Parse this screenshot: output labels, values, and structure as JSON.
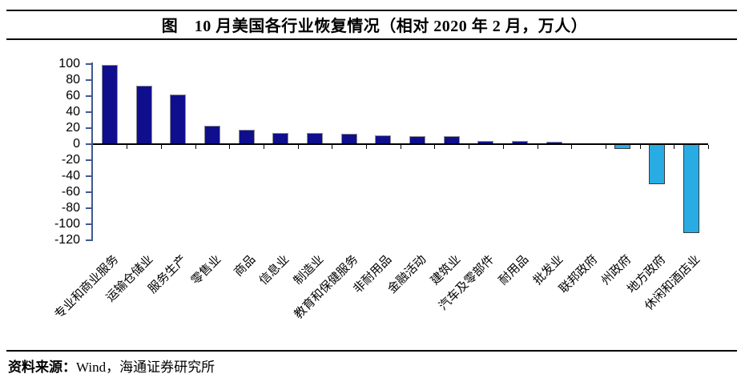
{
  "title": "图　10 月美国各行业恢复情况（相对 2020 年 2 月，万人）",
  "source": {
    "label": "资料来源：",
    "text": "Wind，海通证券研究所"
  },
  "colors": {
    "positive_bar": "#0f0f8e",
    "negative_bar": "#29ace4",
    "axis": "#41598e",
    "line": "#000000"
  },
  "chart_data": {
    "type": "bar",
    "title": "10 月美国各行业恢复情况（相对 2020 年 2 月，万人）",
    "categories": [
      "专业和商业服务",
      "运输仓储业",
      "服务生产",
      "零售业",
      "商品",
      "信息业",
      "制造业",
      "教育和保健服务",
      "非耐用品",
      "金融活动",
      "建筑业",
      "汽车及零部件",
      "耐用品",
      "批发业",
      "联邦政府",
      "州政府",
      "地方政府",
      "休闲和酒店业"
    ],
    "values": [
      99,
      73,
      62,
      23,
      18,
      14,
      14,
      13,
      11,
      10,
      10,
      4,
      4,
      3,
      1,
      -5,
      -49,
      -110
    ],
    "ylabel": "万人",
    "ylim": [
      -120,
      100
    ],
    "ytick_step": 20,
    "yticks": [
      100,
      80,
      60,
      40,
      20,
      0,
      -20,
      -40,
      -60,
      -80,
      -100,
      -120
    ],
    "grid": false,
    "legend": false,
    "bar_color_rule": "positive=navy, negative=cyan"
  }
}
